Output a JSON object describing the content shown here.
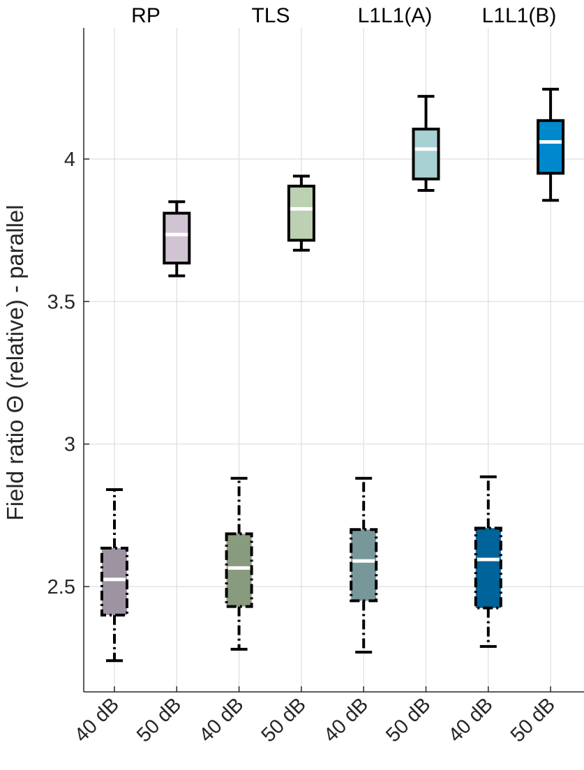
{
  "chart_data": {
    "type": "boxplot",
    "title": "",
    "ylabel": "Field ratio Θ (relative) - parallel",
    "xlabel": "",
    "ylim": [
      2.12,
      4.5
    ],
    "yticks": [
      2.5,
      3,
      3.5,
      4
    ],
    "ytick_labels": [
      "2.5",
      "3",
      "3.5",
      "4"
    ],
    "grid": true,
    "groups": [
      "RP",
      "TLS",
      "L1L1(A)",
      "L1L1(B)"
    ],
    "categories": [
      "40 dB",
      "50 dB",
      "40 dB",
      "50 dB",
      "40 dB",
      "50 dB",
      "40 dB",
      "50 dB"
    ],
    "boxes": [
      {
        "group": "RP",
        "level": "40 dB",
        "color": "#9E93A0",
        "style": "dashdot",
        "whisker_low": 2.24,
        "q1": 2.4,
        "median": 2.525,
        "q3": 2.635,
        "whisker_high": 2.84
      },
      {
        "group": "RP",
        "level": "50 dB",
        "color": "#D0C3D2",
        "style": "solid",
        "whisker_low": 3.59,
        "q1": 3.635,
        "median": 3.735,
        "q3": 3.81,
        "whisker_high": 3.85
      },
      {
        "group": "TLS",
        "level": "40 dB",
        "color": "#899B7E",
        "style": "dashdot",
        "whisker_low": 2.28,
        "q1": 2.43,
        "median": 2.565,
        "q3": 2.685,
        "whisker_high": 2.88
      },
      {
        "group": "TLS",
        "level": "50 dB",
        "color": "#BCD1B1",
        "style": "solid",
        "whisker_low": 3.68,
        "q1": 3.715,
        "median": 3.825,
        "q3": 3.905,
        "whisker_high": 3.94
      },
      {
        "group": "L1L1(A)",
        "level": "40 dB",
        "color": "#78979B",
        "style": "dashdot",
        "whisker_low": 2.27,
        "q1": 2.45,
        "median": 2.59,
        "q3": 2.7,
        "whisker_high": 2.88
      },
      {
        "group": "L1L1(A)",
        "level": "50 dB",
        "color": "#A7D1D3",
        "style": "solid",
        "whisker_low": 3.89,
        "q1": 3.93,
        "median": 4.035,
        "q3": 4.105,
        "whisker_high": 4.22
      },
      {
        "group": "L1L1(B)",
        "level": "40 dB",
        "color": "#006399",
        "style": "dashdot",
        "whisker_low": 2.29,
        "q1": 2.425,
        "median": 2.595,
        "q3": 2.705,
        "whisker_high": 2.885
      },
      {
        "group": "L1L1(B)",
        "level": "50 dB",
        "color": "#0088CC",
        "style": "solid",
        "whisker_low": 3.855,
        "q1": 3.95,
        "median": 4.06,
        "q3": 4.135,
        "whisker_high": 4.245
      }
    ]
  }
}
